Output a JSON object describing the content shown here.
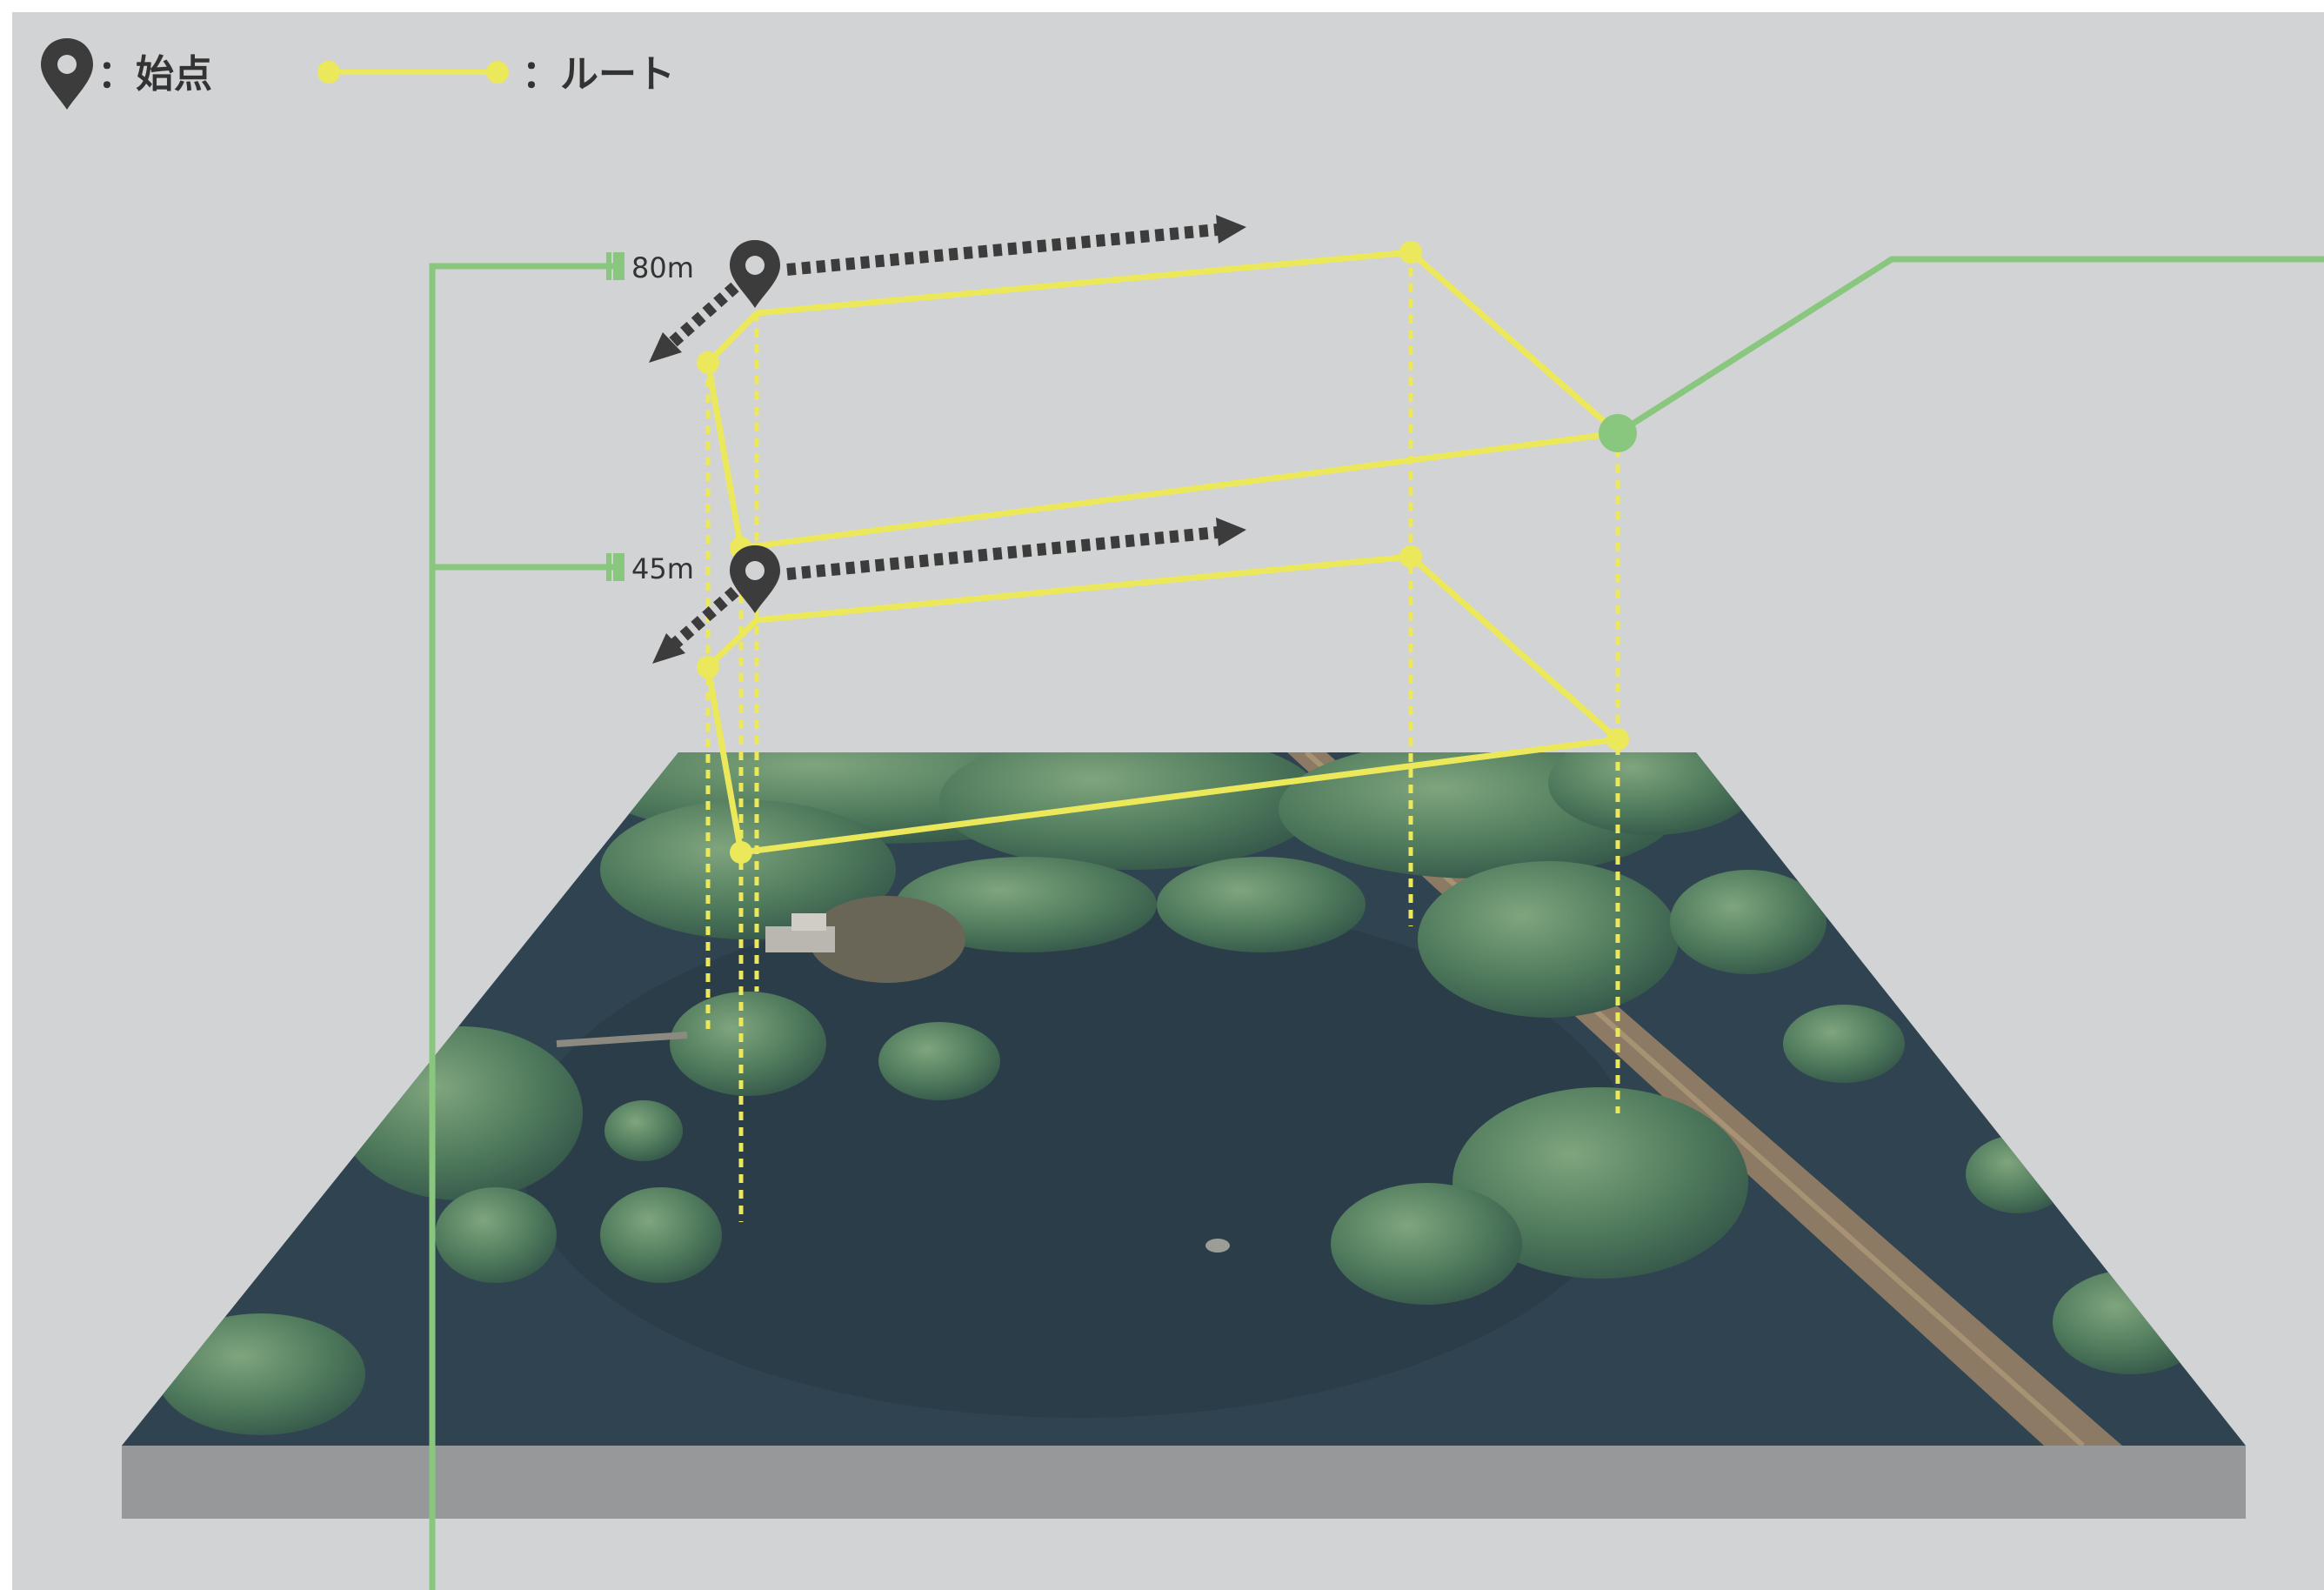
{
  "legend": {
    "start_label": "：始点",
    "route_label": "：ルート",
    "start_icon": "map-pin-icon",
    "route_icon": "route-line-sample"
  },
  "altitudes": {
    "high_label": "80m",
    "low_label": "45m"
  },
  "colors": {
    "background": "#d2d3d4",
    "route": "#ece85b",
    "altitude_marker": "#8ac77e",
    "pin": "#3c3c3c",
    "direction_arrow": "#3c3c3c",
    "ground_base": "#97989a",
    "water": "#2f4450",
    "trees": "#4f7a5c"
  }
}
